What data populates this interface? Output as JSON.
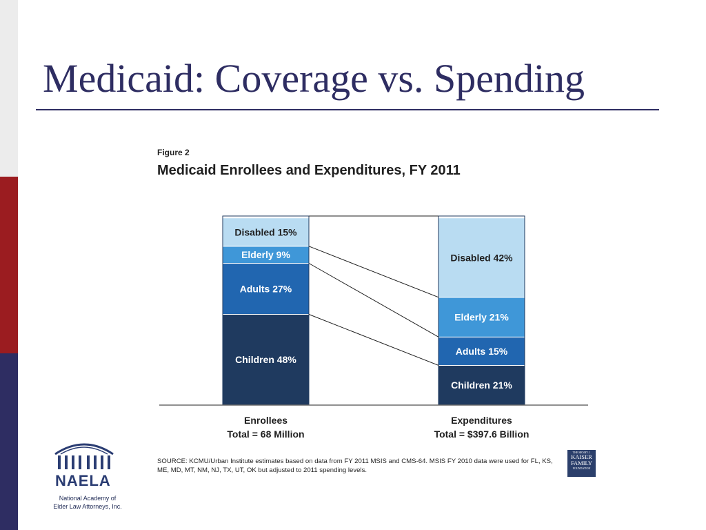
{
  "slide": {
    "title": "Medicaid: Coverage vs. Spending"
  },
  "figure": {
    "number": "Figure 2",
    "title": "Medicaid Enrollees and Expenditures, FY 2011",
    "source": "SOURCE:  KCMU/Urban Institute estimates based on data from FY 2011 MSIS and CMS-64. MSIS FY 2010 data were used for FL, KS, ME, MD, MT, NM, NJ, TX, UT, OK but adjusted to 2011 spending levels."
  },
  "chart_data": {
    "type": "bar",
    "subtype": "100% stacked",
    "categories": [
      "Enrollees",
      "Expenditures"
    ],
    "category_totals": [
      "Total = 68 Million",
      "Total = $397.6 Billion"
    ],
    "series": [
      {
        "name": "Children",
        "values": [
          48,
          21
        ],
        "labels": [
          "Children 48%",
          "Children 21%"
        ],
        "color": "#1f3a5f"
      },
      {
        "name": "Adults",
        "values": [
          27,
          15
        ],
        "labels": [
          "Adults 27%",
          "Adults 15%"
        ],
        "color": "#2166b0"
      },
      {
        "name": "Elderly",
        "values": [
          9,
          21
        ],
        "labels": [
          "Elderly 9%",
          "Elderly 21%"
        ],
        "color": "#3f97d8"
      },
      {
        "name": "Disabled",
        "values": [
          15,
          42
        ],
        "labels": [
          "Disabled 15%",
          "Disabled 42%"
        ],
        "color": "#b9dcf2"
      }
    ],
    "title": "Medicaid Enrollees and Expenditures, FY 2011",
    "xlabel": "",
    "ylabel": "",
    "ylim": [
      0,
      100
    ],
    "grid": false,
    "connector_lines": true
  },
  "logos": {
    "kff": {
      "top": "THE HENRY J.",
      "line1": "KAISER",
      "line2": "FAMILY",
      "bottom": "FOUNDATION"
    },
    "naela": {
      "name": "NAELA",
      "tagline_1": "National Academy of",
      "tagline_2": "Elder Law Attorneys, Inc."
    }
  },
  "colors": {
    "title": "#2e2d62",
    "band_gray": "#ececec",
    "band_red": "#9b1c20",
    "band_navy": "#2e2d62"
  }
}
